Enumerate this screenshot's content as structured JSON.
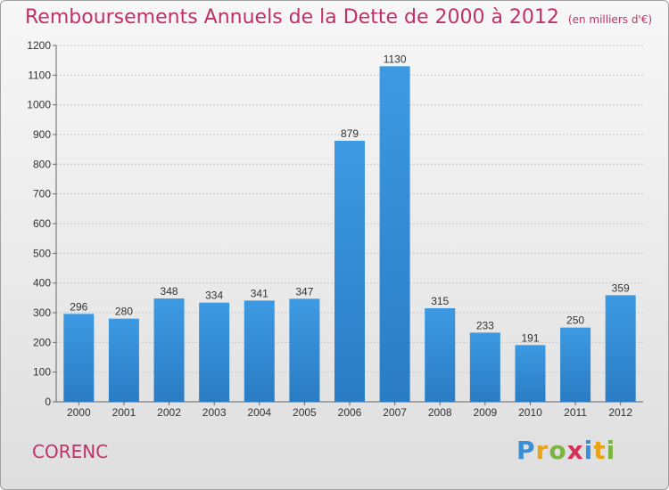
{
  "title": "Remboursements Annuels de la Dette de 2000 à 2012",
  "unit": "(en milliers d'€)",
  "commune": "CORENC",
  "logo": [
    "P",
    "r",
    "o",
    "x",
    "i",
    "t",
    "i"
  ],
  "colors": {
    "bar": "#3d9ae2",
    "bar_dark": "#2a7cc4",
    "title": "#c0306a"
  },
  "chart_data": {
    "type": "bar",
    "categories": [
      "2000",
      "2001",
      "2002",
      "2003",
      "2004",
      "2005",
      "2006",
      "2007",
      "2008",
      "2009",
      "2010",
      "2011",
      "2012"
    ],
    "values": [
      296,
      280,
      348,
      334,
      341,
      347,
      879,
      1130,
      315,
      233,
      191,
      250,
      359
    ],
    "data_labels": [
      "296",
      "280",
      "348",
      "334",
      "341",
      "347",
      "879",
      "1130",
      "315",
      "233",
      "191",
      "250",
      "359"
    ],
    "ylim": [
      0,
      1200
    ],
    "yticks": [
      "0",
      "100",
      "200",
      "300",
      "400",
      "500",
      "600",
      "700",
      "800",
      "900",
      "1000",
      "1100",
      "1200"
    ],
    "grid": true
  }
}
